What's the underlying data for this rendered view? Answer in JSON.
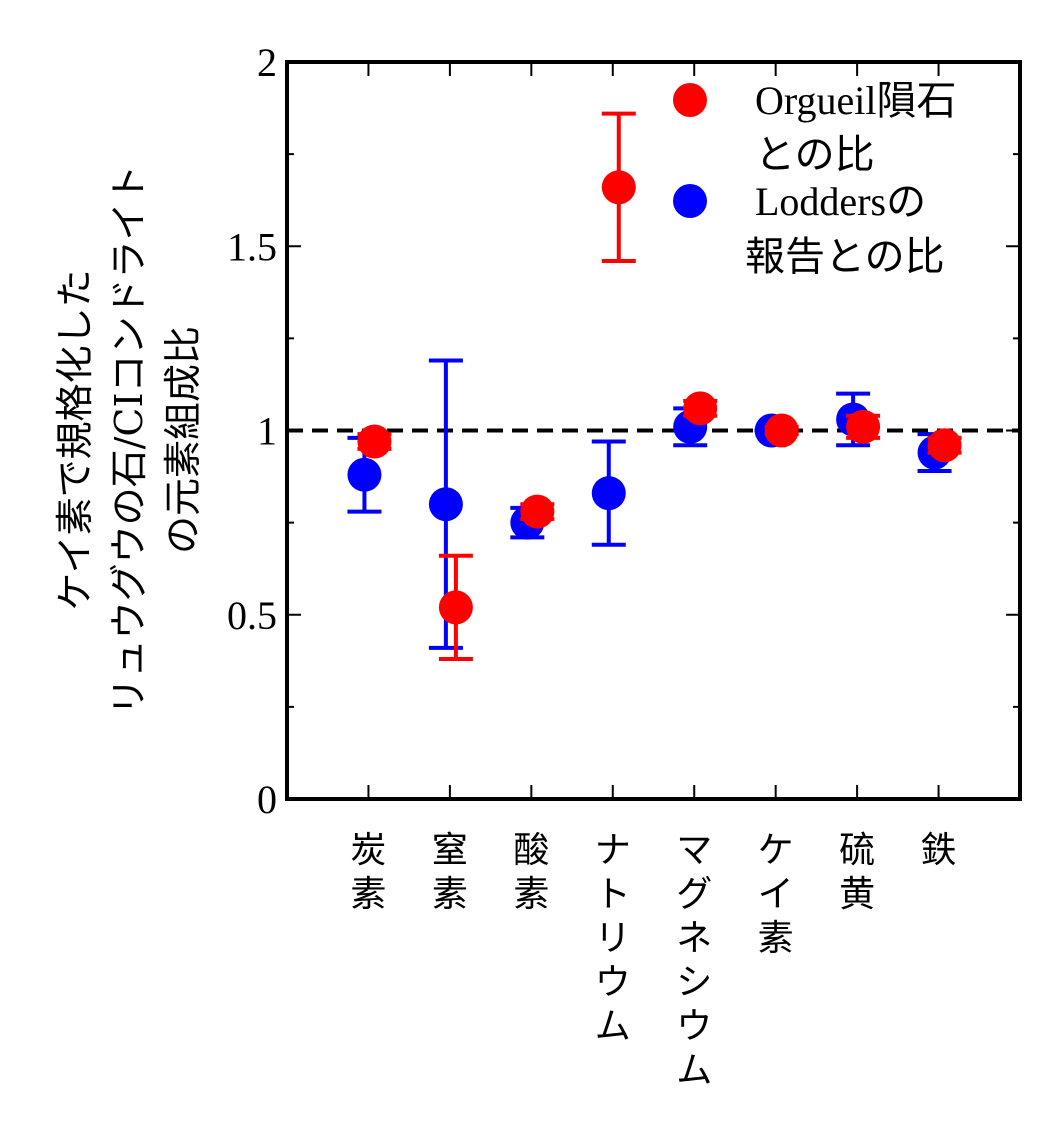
{
  "chart_data": {
    "type": "scatter",
    "categories": [
      "炭素",
      "窒素",
      "酸素",
      "ナトリウム",
      "マグネシウム",
      "ケイ素",
      "硫黄",
      "鉄"
    ],
    "ylabel_lines": [
      "ケイ素で規格化した",
      "リュウグウの石/CIコンドライト",
      "の元素組成比"
    ],
    "ylim": [
      0,
      2
    ],
    "yticks": [
      0,
      0.5,
      1,
      1.5,
      2
    ],
    "ytick_labels": [
      "0",
      "0.5",
      "1",
      "1.5",
      "2"
    ],
    "reference_line": 1,
    "grid": false,
    "legend_placement": "top-right",
    "series": [
      {
        "name_lines": [
          "Lodders",
          "の",
          "報告との比"
        ],
        "color": "#0000ff",
        "values": [
          0.88,
          0.8,
          0.75,
          0.83,
          1.01,
          1.0,
          1.03,
          0.94
        ],
        "err_low": [
          0.78,
          0.41,
          0.71,
          0.69,
          0.96,
          1.0,
          0.96,
          0.89
        ],
        "err_high": [
          0.98,
          1.19,
          0.79,
          0.97,
          1.06,
          1.0,
          1.1,
          0.99
        ]
      },
      {
        "name_lines": [
          "Orgueil",
          "隕石",
          "との比"
        ],
        "color": "#ff0000",
        "values": [
          0.97,
          0.52,
          0.78,
          1.66,
          1.06,
          1.0,
          1.01,
          0.96
        ],
        "err_low": [
          0.95,
          0.38,
          0.76,
          1.46,
          1.04,
          0.99,
          0.98,
          0.94
        ],
        "err_high": [
          0.99,
          0.66,
          0.8,
          1.86,
          1.08,
          1.01,
          1.04,
          0.98
        ]
      }
    ]
  }
}
